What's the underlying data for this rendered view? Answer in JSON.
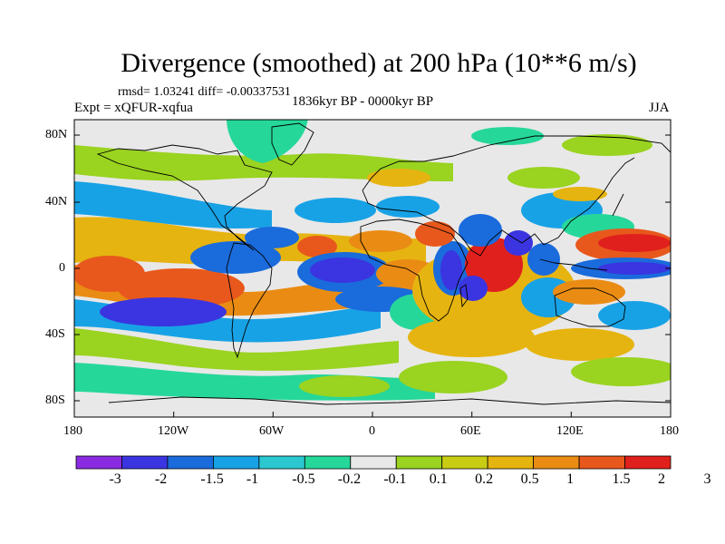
{
  "figure": {
    "title": "Divergence (smoothed) at 200 hPa (10**6 m/s)",
    "stats": "rmsd= 1.03241  diff= -0.00337531",
    "experiment": "Expt = xQFUR-xqfua",
    "period": "1836kyr BP - 0000kyr BP",
    "season": "JJA"
  },
  "axes": {
    "lat_labels": [
      "80N",
      "40N",
      "0",
      "40S",
      "80S"
    ],
    "lon_labels": [
      "180",
      "120W",
      "60W",
      "0",
      "60E",
      "120E",
      "180"
    ]
  },
  "colorbar": {
    "colors": [
      "#8a2be2",
      "#3a35e0",
      "#1a6bdc",
      "#18a2e6",
      "#2bc8d0",
      "#26d79a",
      "#e8e8e8",
      "#9ad320",
      "#c8cd14",
      "#e6b410",
      "#ea8c14",
      "#e8581c",
      "#e0201c"
    ],
    "labels": [
      "-3",
      "-2",
      "-1.5",
      "-1",
      "-0.5",
      "-0.2",
      "-0.1",
      "0.1",
      "0.2",
      "0.5",
      "1",
      "1.5",
      "2",
      "3"
    ]
  }
}
